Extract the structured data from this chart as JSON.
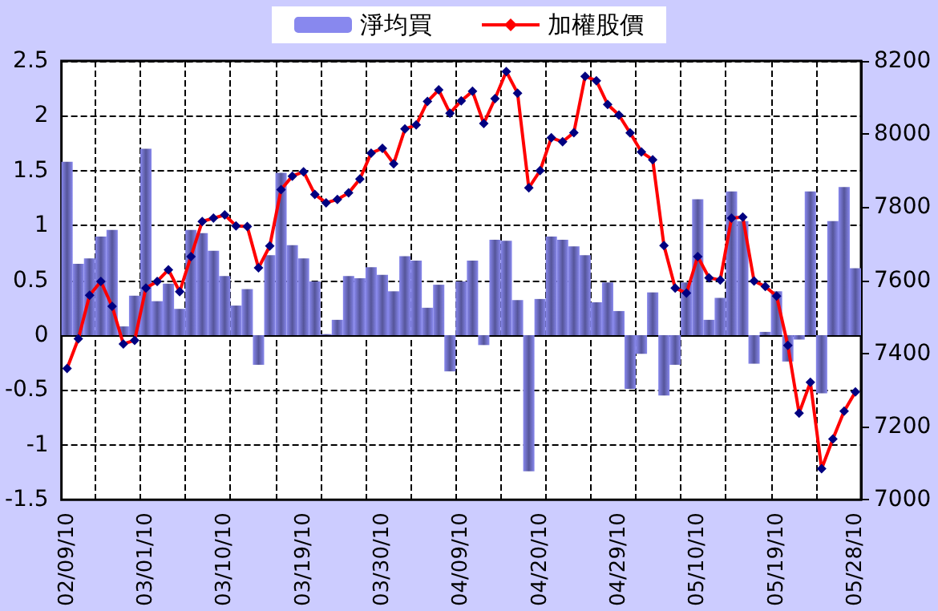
{
  "chart_data": {
    "type": "bar",
    "categories": [
      "02/09/10",
      null,
      null,
      null,
      null,
      null,
      null,
      "03/01/10",
      null,
      null,
      null,
      null,
      null,
      null,
      "03/10/10",
      null,
      null,
      null,
      null,
      null,
      null,
      "03/19/10",
      null,
      null,
      null,
      null,
      null,
      null,
      "03/30/10",
      null,
      null,
      null,
      null,
      null,
      null,
      "04/09/10",
      null,
      null,
      null,
      null,
      null,
      null,
      "04/20/10",
      null,
      null,
      null,
      null,
      null,
      null,
      "04/29/10",
      null,
      null,
      null,
      null,
      null,
      null,
      "05/10/10",
      null,
      null,
      null,
      null,
      null,
      null,
      "05/19/10",
      null,
      null,
      null,
      null,
      null,
      null,
      "05/28/10"
    ],
    "series": [
      {
        "name": "淨均買",
        "color": "#8888ee",
        "values": [
          1.58,
          0.65,
          0.7,
          0.9,
          0.96,
          0.08,
          0.36,
          1.7,
          0.31,
          0.47,
          0.24,
          0.96,
          0.93,
          0.77,
          0.54,
          0.27,
          0.42,
          -0.27,
          0.73,
          1.48,
          0.82,
          0.7,
          0.49,
          0.01,
          0.14,
          0.54,
          0.52,
          0.62,
          0.55,
          0.4,
          0.72,
          0.68,
          0.25,
          0.46,
          -0.33,
          0.49,
          0.68,
          -0.09,
          0.87,
          0.86,
          0.32,
          -1.24,
          0.33,
          0.9,
          0.87,
          0.81,
          0.73,
          0.3,
          0.48,
          0.22,
          -0.49,
          -0.17,
          0.39,
          -0.55,
          -0.27,
          0.48,
          1.24,
          0.14,
          0.34,
          1.31,
          1.04,
          -0.26,
          0.03,
          0.4,
          -0.24,
          -0.04,
          1.31,
          -0.53,
          1.04,
          1.35,
          0.61
        ]
      },
      {
        "name": "加權股價",
        "type": "line",
        "axis": "y2",
        "color": "#ff0000",
        "values": [
          7359,
          7440,
          7559,
          7597,
          7529,
          7426,
          7436,
          7579,
          7597,
          7629,
          7569,
          7665,
          7761,
          7770,
          7779,
          7749,
          7747,
          7634,
          7694,
          7848,
          7885,
          7897,
          7835,
          7812,
          7821,
          7839,
          7877,
          7948,
          7961,
          7919,
          8014,
          8025,
          8089,
          8121,
          8057,
          8091,
          8117,
          8029,
          8097,
          8171,
          8112,
          7853,
          7900,
          7990,
          7979,
          8004,
          8158,
          8146,
          8081,
          8052,
          8003,
          7951,
          7930,
          7695,
          7579,
          7565,
          7665,
          7607,
          7601,
          7770,
          7773,
          7598,
          7583,
          7557,
          7422,
          7237,
          7321,
          7085,
          7166,
          7242,
          7295
        ]
      }
    ],
    "ylim": [
      -1.5,
      2.5
    ],
    "yticks": [
      -1.5,
      -1,
      -0.5,
      0,
      0.5,
      1,
      1.5,
      2,
      2.5
    ],
    "y2lim": [
      7000,
      8200
    ],
    "y2ticks": [
      7000,
      7200,
      7400,
      7600,
      7800,
      8000,
      8200
    ],
    "grid": true,
    "legend": "top",
    "marker": "diamond",
    "line_style": "solid"
  }
}
